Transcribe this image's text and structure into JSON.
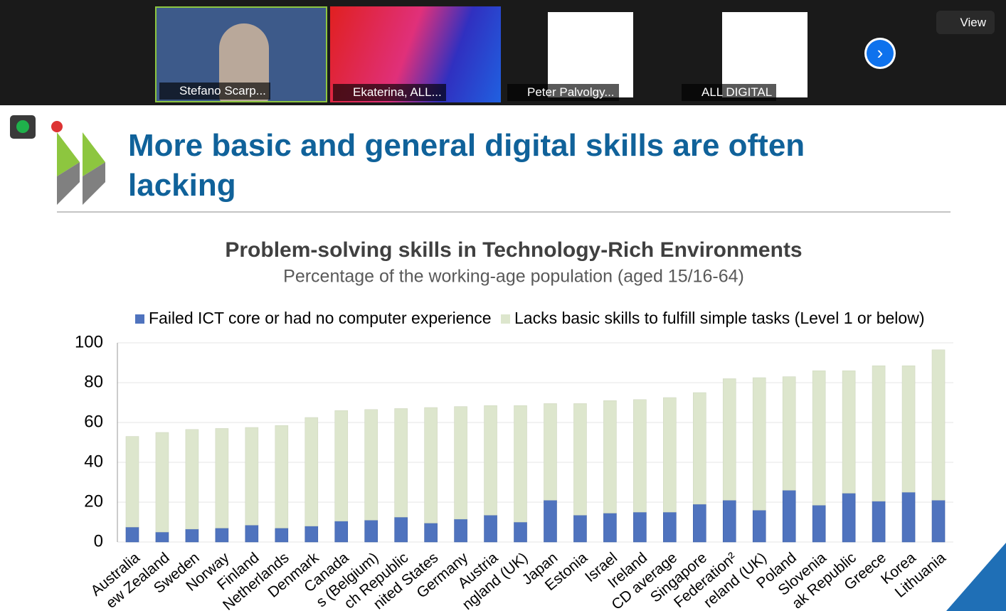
{
  "participants": [
    "Stefano Scarp...",
    "Ekaterina, ALL...",
    "Peter Palvolgy...",
    "ALL DIGITAL"
  ],
  "view_button": "View",
  "slide": {
    "title": "More basic and general digital skills are often lacking"
  },
  "chart_data": {
    "type": "stacked_bar",
    "title": "Problem-solving skills in Technology-Rich Environments",
    "subtitle": "Percentage of the working-age population (aged 15/16-64)",
    "categories": [
      "Australia",
      "ew Zealand",
      "Sweden",
      "Norway",
      "Finland",
      "Netherlands",
      "Denmark",
      "Canada",
      "s (Belgium)",
      "ch Republic",
      "nited States",
      "Germany",
      "Austria",
      "ngland (UK)",
      "Japan",
      "Estonia",
      "Israel",
      "Ireland",
      "CD average",
      "Singapore",
      "Federation²",
      "reland (UK)",
      "Poland",
      "Slovenia",
      "ak Republic",
      "Greece",
      "Korea",
      "Lithuania"
    ],
    "series": [
      {
        "name": "Failed ICT core or had no computer experience",
        "color": "#4f73be",
        "values": [
          7.5,
          5,
          6.5,
          7,
          8.5,
          7,
          8,
          10.5,
          11,
          12.5,
          9.5,
          11.5,
          13.5,
          10,
          21,
          13.5,
          14.5,
          15,
          15,
          19,
          21,
          16,
          26,
          18.5,
          24.5,
          20.5,
          25,
          21
        ]
      },
      {
        "name": "Lacks basic skills to fulfill simple tasks (Level 1 or below)",
        "color": "#dde6cd",
        "values": [
          45.5,
          50,
          50,
          50,
          49,
          51.5,
          54.5,
          55.5,
          55.5,
          54.5,
          58,
          56.5,
          55,
          58.5,
          48.5,
          56,
          56.5,
          56.5,
          57.5,
          56,
          61,
          66.5,
          57,
          67.5,
          61.5,
          68,
          63.5,
          75.5
        ]
      }
    ],
    "ylim": [
      0,
      100
    ],
    "yticks": [
      0,
      20,
      40,
      60,
      80,
      100
    ],
    "grid": true
  }
}
